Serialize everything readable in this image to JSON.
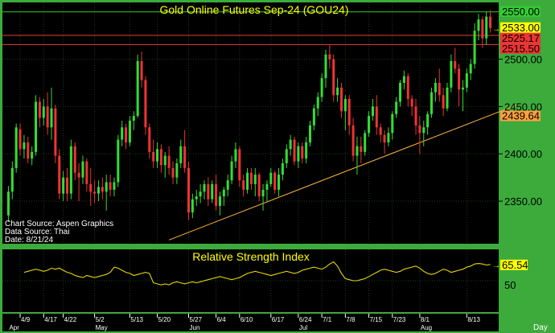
{
  "title": "Gold Online Futures Sep-24 (GOU24)",
  "colors": {
    "frame": "#3cab3c",
    "panel_bg": "#000000",
    "up": "#33dd33",
    "down": "#ee3333",
    "title": "#ffff00",
    "trendline": "#ffb43c",
    "rsi_line": "#e8d800",
    "hline_green": "#33cc33",
    "hline_red": "#e63b3b",
    "grid": "#1a3d1a"
  },
  "source_lines": [
    "Chart Source: Aspen Graphics",
    "Data Source: Thai",
    "Date: 8/21/24"
  ],
  "price_badges": [
    {
      "value": "2550.00",
      "bg": "#33cc33",
      "fg": "#000000"
    },
    {
      "value": "2533.00",
      "bg": "#ffff00",
      "fg": "#000000"
    },
    {
      "value": "2525.17",
      "bg": "#ee3333",
      "fg": "#000000"
    },
    {
      "value": "2515.50",
      "bg": "#ee3333",
      "fg": "#000000"
    },
    {
      "value": "2439.64",
      "bg": "#ffa040",
      "fg": "#000000"
    }
  ],
  "rsi_panel": {
    "title": "Relative Strength Index",
    "current": "65.54",
    "tick": "50"
  },
  "x_axis": {
    "day_ticks": [
      "4/9",
      "4/17",
      "4/22",
      "5/2",
      "5/13",
      "5/20",
      "5/27",
      "6/4",
      "6/10",
      "6/17",
      "6/24",
      "7/1",
      "7/8",
      "7/15",
      "7/23",
      "8/1",
      "8/13"
    ],
    "months": [
      "Apr",
      "May",
      "Jun",
      "Jul",
      "Aug"
    ],
    "period_label": "Day"
  },
  "chart_data": [
    {
      "type": "candlestick",
      "title": "Gold Online Futures Sep-24 (GOU24)",
      "ylim": [
        2305,
        2560
      ],
      "y_ticks": [
        2350,
        2400,
        2450,
        2500
      ],
      "horizontal_lines": [
        2550.0,
        2525.17,
        2515.5
      ],
      "last_price": 2533.0,
      "trendline": {
        "from": {
          "bar": 41,
          "price": 2309
        },
        "to": {
          "bar": 125,
          "price": 2444
        },
        "value_at_last": 2439.64
      },
      "ohlc": [
        [
          2335,
          2366,
          2328,
          2360
        ],
        [
          2360,
          2392,
          2352,
          2385
        ],
        [
          2385,
          2432,
          2380,
          2428
        ],
        [
          2426,
          2432,
          2398,
          2405
        ],
        [
          2405,
          2420,
          2395,
          2412
        ],
        [
          2412,
          2418,
          2390,
          2395
        ],
        [
          2395,
          2408,
          2388,
          2402
        ],
        [
          2402,
          2462,
          2398,
          2455
        ],
        [
          2455,
          2460,
          2428,
          2438
        ],
        [
          2438,
          2458,
          2430,
          2450
        ],
        [
          2450,
          2465,
          2420,
          2428
        ],
        [
          2428,
          2470,
          2415,
          2448
        ],
        [
          2448,
          2452,
          2390,
          2398
        ],
        [
          2398,
          2405,
          2352,
          2358
        ],
        [
          2358,
          2382,
          2350,
          2375
        ],
        [
          2375,
          2385,
          2350,
          2358
        ],
        [
          2358,
          2415,
          2352,
          2408
        ],
        [
          2408,
          2412,
          2372,
          2380
        ],
        [
          2380,
          2390,
          2350,
          2375
        ],
        [
          2375,
          2398,
          2368,
          2392
        ],
        [
          2392,
          2395,
          2360,
          2368
        ],
        [
          2368,
          2385,
          2345,
          2360
        ],
        [
          2360,
          2372,
          2348,
          2358
        ],
        [
          2358,
          2372,
          2350,
          2365
        ],
        [
          2365,
          2375,
          2352,
          2360
        ],
        [
          2360,
          2378,
          2340,
          2370
        ],
        [
          2370,
          2378,
          2355,
          2362
        ],
        [
          2362,
          2375,
          2355,
          2370
        ],
        [
          2370,
          2420,
          2365,
          2415
        ],
        [
          2415,
          2435,
          2408,
          2428
        ],
        [
          2428,
          2432,
          2405,
          2412
        ],
        [
          2412,
          2440,
          2408,
          2435
        ],
        [
          2435,
          2445,
          2425,
          2440
        ],
        [
          2440,
          2505,
          2438,
          2498
        ],
        [
          2498,
          2508,
          2470,
          2478
        ],
        [
          2478,
          2482,
          2420,
          2428
        ],
        [
          2428,
          2432,
          2395,
          2402
        ],
        [
          2402,
          2415,
          2385,
          2392
        ],
        [
          2392,
          2412,
          2385,
          2405
        ],
        [
          2405,
          2410,
          2380,
          2388
        ],
        [
          2388,
          2402,
          2375,
          2398
        ],
        [
          2398,
          2408,
          2378,
          2385
        ],
        [
          2385,
          2392,
          2368,
          2375
        ],
        [
          2375,
          2395,
          2368,
          2390
        ],
        [
          2390,
          2415,
          2385,
          2408
        ],
        [
          2408,
          2425,
          2380,
          2385
        ],
        [
          2385,
          2392,
          2330,
          2338
        ],
        [
          2338,
          2358,
          2332,
          2352
        ],
        [
          2352,
          2362,
          2345,
          2355
        ],
        [
          2355,
          2368,
          2348,
          2360
        ],
        [
          2360,
          2372,
          2352,
          2368
        ],
        [
          2368,
          2375,
          2345,
          2352
        ],
        [
          2352,
          2372,
          2348,
          2368
        ],
        [
          2368,
          2378,
          2340,
          2345
        ],
        [
          2345,
          2360,
          2335,
          2355
        ],
        [
          2355,
          2365,
          2345,
          2362
        ],
        [
          2362,
          2378,
          2355,
          2372
        ],
        [
          2372,
          2398,
          2368,
          2392
        ],
        [
          2392,
          2412,
          2385,
          2405
        ],
        [
          2405,
          2408,
          2365,
          2372
        ],
        [
          2372,
          2378,
          2355,
          2362
        ],
        [
          2362,
          2385,
          2358,
          2380
        ],
        [
          2380,
          2385,
          2362,
          2368
        ],
        [
          2368,
          2385,
          2355,
          2378
        ],
        [
          2378,
          2380,
          2350,
          2355
        ],
        [
          2355,
          2368,
          2340,
          2362
        ],
        [
          2362,
          2372,
          2350,
          2368
        ],
        [
          2368,
          2385,
          2365,
          2380
        ],
        [
          2380,
          2382,
          2358,
          2362
        ],
        [
          2362,
          2385,
          2355,
          2378
        ],
        [
          2378,
          2395,
          2372,
          2390
        ],
        [
          2390,
          2410,
          2385,
          2405
        ],
        [
          2405,
          2420,
          2398,
          2415
        ],
        [
          2415,
          2418,
          2388,
          2392
        ],
        [
          2392,
          2412,
          2385,
          2408
        ],
        [
          2408,
          2412,
          2390,
          2395
        ],
        [
          2395,
          2418,
          2390,
          2412
        ],
        [
          2412,
          2435,
          2408,
          2430
        ],
        [
          2430,
          2452,
          2425,
          2448
        ],
        [
          2448,
          2465,
          2440,
          2460
        ],
        [
          2460,
          2485,
          2455,
          2480
        ],
        [
          2480,
          2510,
          2470,
          2505
        ],
        [
          2505,
          2515,
          2490,
          2500
        ],
        [
          2500,
          2505,
          2455,
          2462
        ],
        [
          2462,
          2480,
          2455,
          2470
        ],
        [
          2470,
          2475,
          2438,
          2445
        ],
        [
          2445,
          2462,
          2425,
          2458
        ],
        [
          2458,
          2462,
          2420,
          2430
        ],
        [
          2430,
          2438,
          2392,
          2398
        ],
        [
          2398,
          2418,
          2378,
          2408
        ],
        [
          2408,
          2418,
          2390,
          2402
        ],
        [
          2402,
          2425,
          2398,
          2422
        ],
        [
          2422,
          2445,
          2418,
          2440
        ],
        [
          2440,
          2458,
          2435,
          2450
        ],
        [
          2450,
          2462,
          2420,
          2428
        ],
        [
          2428,
          2432,
          2412,
          2420
        ],
        [
          2420,
          2425,
          2400,
          2412
        ],
        [
          2412,
          2428,
          2408,
          2422
        ],
        [
          2422,
          2445,
          2415,
          2442
        ],
        [
          2442,
          2460,
          2438,
          2455
        ],
        [
          2455,
          2478,
          2450,
          2475
        ],
        [
          2475,
          2488,
          2468,
          2482
        ],
        [
          2482,
          2485,
          2450,
          2458
        ],
        [
          2458,
          2462,
          2440,
          2450
        ],
        [
          2450,
          2458,
          2420,
          2430
        ],
        [
          2430,
          2440,
          2400,
          2422
        ],
        [
          2422,
          2435,
          2408,
          2428
        ],
        [
          2428,
          2445,
          2420,
          2442
        ],
        [
          2442,
          2470,
          2438,
          2465
        ],
        [
          2465,
          2480,
          2455,
          2475
        ],
        [
          2475,
          2490,
          2455,
          2462
        ],
        [
          2462,
          2470,
          2440,
          2448
        ],
        [
          2448,
          2475,
          2445,
          2470
        ],
        [
          2470,
          2505,
          2465,
          2498
        ],
        [
          2498,
          2512,
          2485,
          2490
        ],
        [
          2490,
          2495,
          2450,
          2468
        ],
        [
          2468,
          2478,
          2445,
          2470
        ],
        [
          2470,
          2490,
          2465,
          2485
        ],
        [
          2485,
          2500,
          2478,
          2495
        ],
        [
          2495,
          2538,
          2490,
          2530
        ],
        [
          2530,
          2548,
          2520,
          2542
        ],
        [
          2542,
          2545,
          2512,
          2522
        ],
        [
          2522,
          2550,
          2515,
          2545
        ],
        [
          2545,
          2552,
          2528,
          2533
        ]
      ]
    },
    {
      "type": "line",
      "title": "Relative Strength Index",
      "ylim": [
        20,
        80
      ],
      "y_ticks": [
        50
      ],
      "series": [
        {
          "values": [
            58,
            59,
            60,
            61,
            60,
            59,
            60,
            62,
            61,
            62,
            60,
            58,
            57,
            55,
            54,
            53,
            55,
            54,
            53,
            54,
            55,
            56,
            58,
            63,
            62,
            60,
            58,
            57,
            55,
            56,
            57,
            58,
            57,
            48,
            47,
            46,
            47,
            46,
            48,
            49,
            48,
            47,
            48,
            49,
            48,
            49,
            50,
            51,
            52,
            53,
            54,
            53,
            52,
            51,
            52,
            53,
            55,
            57,
            58,
            59,
            58,
            57,
            56,
            55,
            56,
            57,
            58,
            59,
            58,
            57,
            58,
            60,
            61,
            62,
            63,
            62,
            61,
            63,
            66,
            68,
            64,
            57,
            52,
            51,
            50,
            50,
            51,
            52,
            54,
            56,
            58,
            60,
            61,
            60,
            59,
            58,
            59,
            61,
            62,
            63,
            64,
            62,
            59,
            57,
            56,
            57,
            59,
            61,
            60,
            58,
            59,
            60,
            61,
            63,
            64,
            66,
            66.5,
            66,
            65,
            65.54
          ]
        }
      ]
    }
  ]
}
